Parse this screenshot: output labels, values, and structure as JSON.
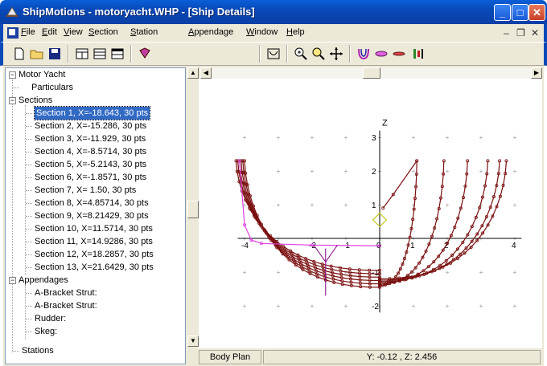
{
  "window": {
    "title": "ShipMotions - motoryacht.WHP - [Ship Details]",
    "minimize": "_",
    "maximize": "□",
    "close": "✕"
  },
  "menu": [
    "File",
    "Edit",
    "View",
    "Section",
    "Station",
    "Appendage",
    "Window",
    "Help"
  ],
  "mdi_controls": {
    "minimize": "–",
    "restore": "❐",
    "close": "✕"
  },
  "toolbar_icons": [
    "new-file-icon",
    "open-folder-icon",
    "save-icon",
    "grid-view-icon",
    "list-view-icon",
    "table-view-icon",
    "book-icon",
    "body-plan-icon",
    "zoom-in-icon",
    "zoom-fit-icon",
    "pan-icon",
    "sections-icon",
    "appendage-icon",
    "station-icon",
    "settings-icon"
  ],
  "tree": {
    "root": "Motor Yacht",
    "particulars": "Particulars",
    "sections_label": "Sections",
    "sections": [
      "Section 1, X=-18.643, 30 pts",
      "Section 2, X=-15.286, 30 pts",
      "Section 3, X=-11.929, 30 pts",
      "Section 4, X=-8.5714, 30 pts",
      "Section 5, X=-5.2143, 30 pts",
      "Section 6, X=-1.8571, 30 pts",
      "Section 7, X=  1.50, 30 pts",
      "Section 8, X=4.85714, 30 pts",
      "Section 9, X=8.21429, 30 pts",
      "Section 10, X=11.5714, 30 pts",
      "Section 11, X=14.9286, 30 pts",
      "Section 12, X=18.2857, 30 pts",
      "Section 13, X=21.6429, 30 pts"
    ],
    "selected_index": 0,
    "appendages_label": "Appendages",
    "appendages": [
      "A-Bracket Strut:",
      "A-Bracket Strut:",
      "Rudder:",
      "Skeg:"
    ],
    "stations": "Stations"
  },
  "plot": {
    "axis_z_label": "Z",
    "x_ticks": [
      "-4",
      "-2",
      "-1",
      "0",
      "1",
      "2",
      "4"
    ],
    "y_ticks": [
      "3",
      "2",
      "1",
      "-1",
      "-2"
    ],
    "section_color": "#7a1010",
    "highlight_color": "#e040e0",
    "marker_color": "#c8c820"
  },
  "status": {
    "view": "Body Plan",
    "coords": "Y: -0.12 , Z: 2.456"
  }
}
